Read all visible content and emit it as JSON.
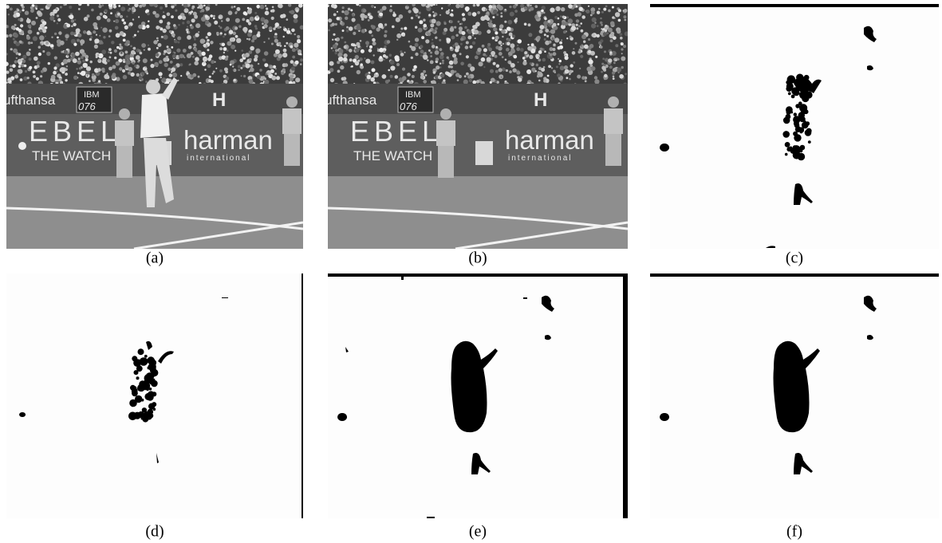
{
  "panels": [
    {
      "caption": "(a)",
      "scene_text": [
        "ufthansa",
        "IBM",
        "076",
        "H",
        "EBEL",
        "THE WATCH",
        "harman",
        "international"
      ]
    },
    {
      "caption": "(b)",
      "scene_text": [
        "ufthansa",
        "IBM",
        "076",
        "H",
        "EBEL",
        "THE WATCH",
        "harman",
        "international"
      ]
    },
    {
      "caption": "(c)"
    },
    {
      "caption": "(d)"
    },
    {
      "caption": "(e)"
    },
    {
      "caption": "(f)"
    }
  ]
}
